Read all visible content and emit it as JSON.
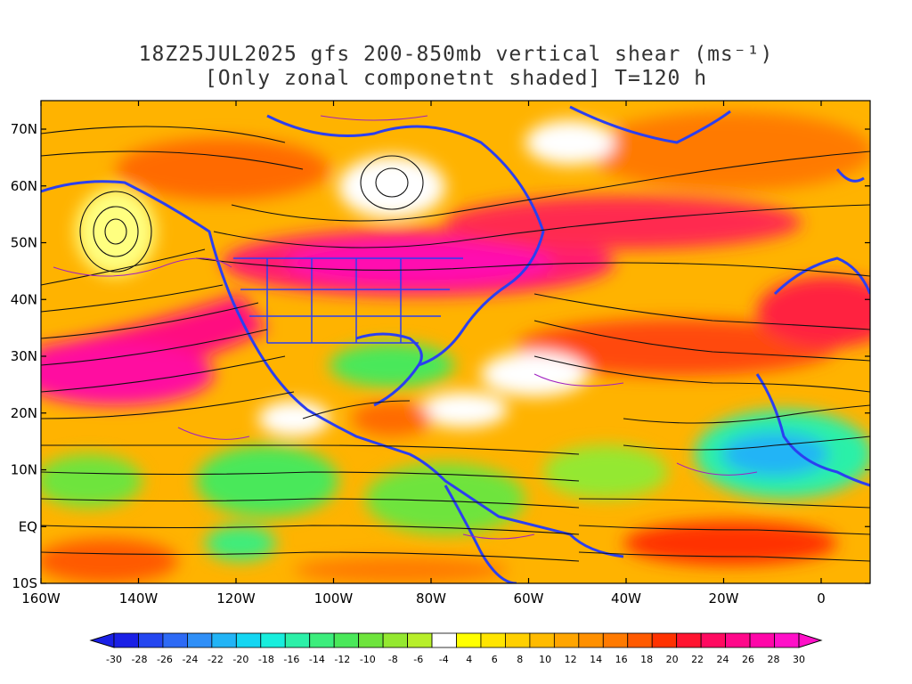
{
  "title_line1": "18Z25JUL2025 gfs 200-850mb vertical shear (ms⁻¹)",
  "title_line2": "[Only zonal componetnt shaded] T=120 h",
  "lat_labels": [
    "70N",
    "60N",
    "50N",
    "40N",
    "30N",
    "20N",
    "10N",
    "EQ",
    "10S"
  ],
  "lon_labels": [
    "160W",
    "140W",
    "120W",
    "100W",
    "80W",
    "60W",
    "40W",
    "20W",
    "0"
  ],
  "colorbar": {
    "labels": [
      "-30",
      "-28",
      "-26",
      "-24",
      "-22",
      "-20",
      "-18",
      "-16",
      "-14",
      "-12",
      "-10",
      "-8",
      "-6",
      "-4",
      "4",
      "6",
      "8",
      "10",
      "12",
      "14",
      "16",
      "18",
      "20",
      "22",
      "24",
      "26",
      "28",
      "30"
    ],
    "colors": [
      "#1a20e6",
      "#2446f0",
      "#2d6af5",
      "#2f8ff7",
      "#22b4f6",
      "#14d6f2",
      "#18eedd",
      "#2cf0a8",
      "#3ced7c",
      "#4ae85a",
      "#6ee43c",
      "#94e830",
      "#b7ee2a",
      "#ffffff",
      "#ffff00",
      "#ffe500",
      "#ffd000",
      "#ffbb00",
      "#ffa500",
      "#ff9000",
      "#ff7a00",
      "#ff5a00",
      "#ff3200",
      "#ff1430",
      "#ff0a60",
      "#ff088a",
      "#ff06a8",
      "#ff10c8"
    ]
  }
}
